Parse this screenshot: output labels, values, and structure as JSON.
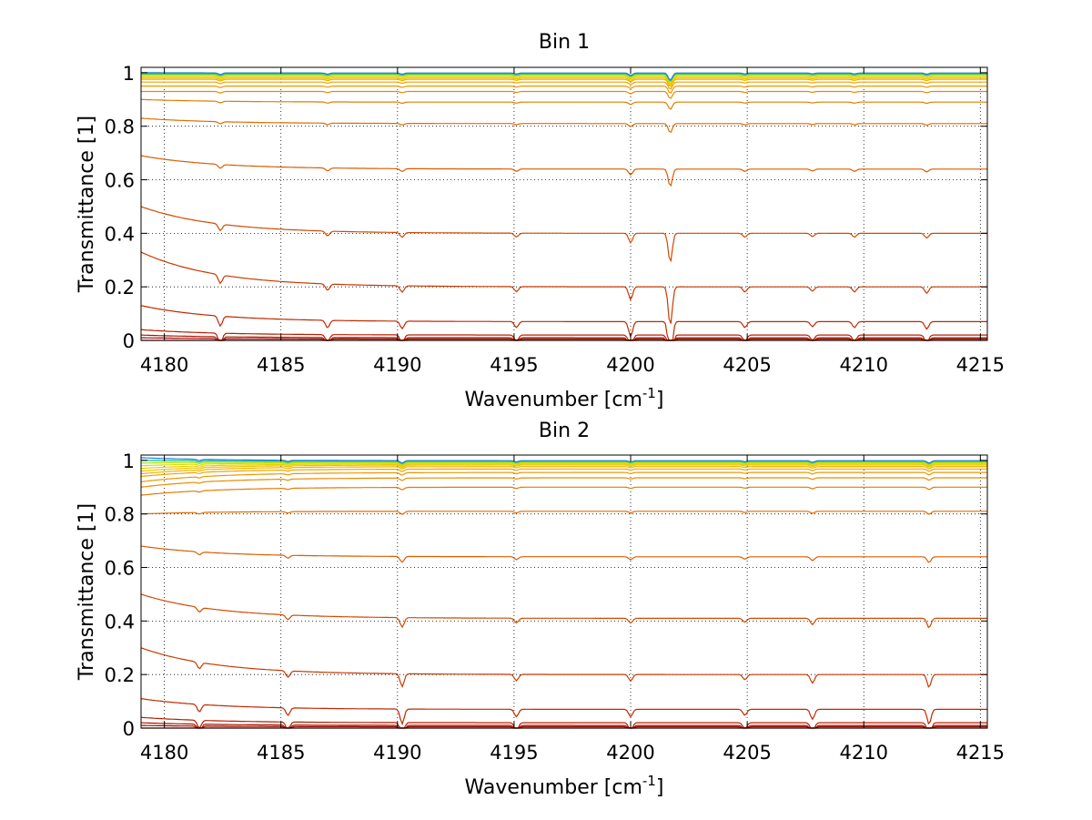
{
  "chart_data": [
    {
      "type": "line",
      "title": "Bin 1",
      "xlabel": "Wavenumber [cm",
      "xlabel_sup": "-1",
      "xlabel_close": "]",
      "ylabel": "Transmittance [1]",
      "xlim": [
        4179,
        4215.3
      ],
      "ylim": [
        0,
        1.02
      ],
      "xticks": [
        "4180",
        "4185",
        "4190",
        "4195",
        "4200",
        "4205",
        "4210",
        "4215"
      ],
      "xtick_values": [
        4180,
        4185,
        4190,
        4195,
        4200,
        4205,
        4210,
        4215
      ],
      "yticks": [
        "0",
        "0.2",
        "0.4",
        "0.6",
        "0.8",
        "1"
      ],
      "ytick_values": [
        0,
        0.2,
        0.4,
        0.6,
        0.8,
        1.0
      ],
      "grid": true,
      "colors": [
        "#8b0000",
        "#9a0a00",
        "#a81400",
        "#b51e00",
        "#c02800",
        "#c83a00",
        "#d24a00",
        "#da5c00",
        "#e06c00",
        "#e47c00",
        "#e88a00",
        "#eb9700",
        "#eea400",
        "#f0b200",
        "#f2c000",
        "#e8d000",
        "#d2dc00",
        "#a8e000",
        "#60d040",
        "#20c0c0",
        "#2080e0"
      ],
      "series_levels": [
        0.0,
        0.005,
        0.01,
        0.02,
        0.07,
        0.2,
        0.4,
        0.64,
        0.81,
        0.89,
        0.93,
        0.95,
        0.965,
        0.975,
        0.98,
        0.985,
        0.99,
        0.993,
        0.995,
        0.997,
        0.999
      ],
      "series_start_values": [
        0.0,
        0.01,
        0.02,
        0.04,
        0.13,
        0.33,
        0.5,
        0.69,
        0.83,
        0.9,
        0.93,
        0.95,
        0.965,
        0.975,
        0.98,
        0.985,
        0.99,
        0.993,
        0.995,
        0.997,
        1.0
      ],
      "absorption_lines": [
        {
          "x": 4182.4,
          "depth": 0.02
        },
        {
          "x": 4187.0,
          "depth": 0.015
        },
        {
          "x": 4190.2,
          "depth": 0.015
        },
        {
          "x": 4195.1,
          "depth": 0.012
        },
        {
          "x": 4200.0,
          "depth": 0.03
        },
        {
          "x": 4201.7,
          "depth": 0.09
        },
        {
          "x": 4204.9,
          "depth": 0.012
        },
        {
          "x": 4207.8,
          "depth": 0.01
        },
        {
          "x": 4209.6,
          "depth": 0.012
        },
        {
          "x": 4212.7,
          "depth": 0.015
        }
      ]
    },
    {
      "type": "line",
      "title": "Bin 2",
      "xlabel": "Wavenumber [cm",
      "xlabel_sup": "-1",
      "xlabel_close": "]",
      "ylabel": "Transmittance [1]",
      "xlim": [
        4179,
        4215.3
      ],
      "ylim": [
        0,
        1.02
      ],
      "xticks": [
        "4180",
        "4185",
        "4190",
        "4195",
        "4200",
        "4205",
        "4210",
        "4215"
      ],
      "xtick_values": [
        4180,
        4185,
        4190,
        4195,
        4200,
        4205,
        4210,
        4215
      ],
      "yticks": [
        "0",
        "0.2",
        "0.4",
        "0.6",
        "0.8",
        "1"
      ],
      "ytick_values": [
        0,
        0.2,
        0.4,
        0.6,
        0.8,
        1.0
      ],
      "grid": true,
      "colors": [
        "#8b0000",
        "#9a0a00",
        "#a81400",
        "#b51e00",
        "#c02800",
        "#c83a00",
        "#d24a00",
        "#da5c00",
        "#e06c00",
        "#e47c00",
        "#e88a00",
        "#eb9700",
        "#eea400",
        "#f0b200",
        "#f2c000",
        "#e8d000",
        "#d2dc00",
        "#a8e000",
        "#60d040",
        "#20c0c0",
        "#2080e0"
      ],
      "series_levels": [
        0.0,
        0.005,
        0.01,
        0.02,
        0.07,
        0.2,
        0.41,
        0.64,
        0.81,
        0.9,
        0.935,
        0.955,
        0.968,
        0.977,
        0.983,
        0.987,
        0.991,
        0.994,
        0.996,
        0.998,
        0.999
      ],
      "series_start_values": [
        0.0,
        0.01,
        0.02,
        0.04,
        0.11,
        0.3,
        0.5,
        0.68,
        0.8,
        0.87,
        0.9,
        0.92,
        0.94,
        0.95,
        0.96,
        0.97,
        0.98,
        0.99,
        1.0,
        1.0,
        1.01
      ],
      "absorption_lines": [
        {
          "x": 4181.5,
          "depth": 0.015
        },
        {
          "x": 4185.3,
          "depth": 0.015
        },
        {
          "x": 4190.2,
          "depth": 0.03
        },
        {
          "x": 4195.1,
          "depth": 0.015
        },
        {
          "x": 4200.0,
          "depth": 0.015
        },
        {
          "x": 4204.9,
          "depth": 0.012
        },
        {
          "x": 4207.8,
          "depth": 0.02
        },
        {
          "x": 4212.8,
          "depth": 0.03
        }
      ]
    }
  ]
}
